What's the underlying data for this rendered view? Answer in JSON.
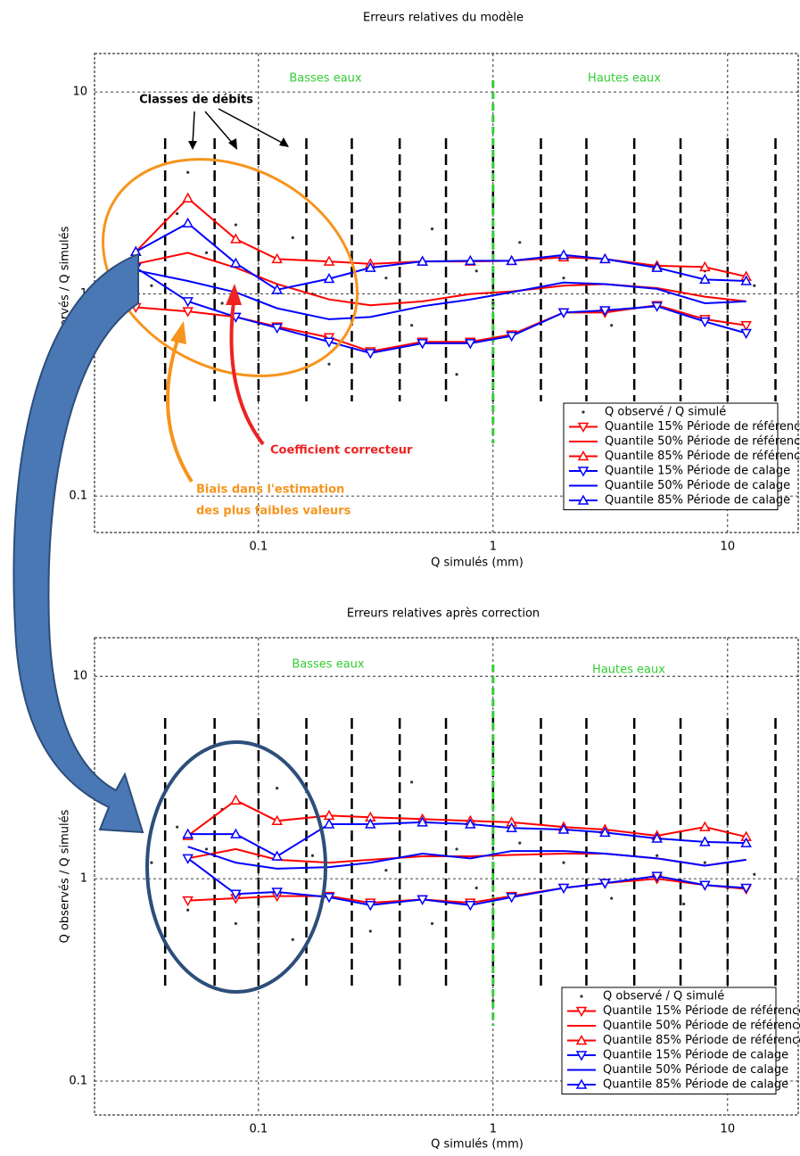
{
  "chart_data": [
    {
      "type": "line",
      "title": "Erreurs relatives du modèle",
      "xlabel": "Q simulés (mm)",
      "ylabel": "Q observés / Q simulés",
      "log_x": true,
      "log_y": true,
      "grid": true,
      "xlim": [
        0.02,
        20
      ],
      "ylim": [
        0.066,
        15.5
      ],
      "xticks": [
        0.1,
        1,
        10
      ],
      "yticks": [
        0.1,
        1,
        10
      ],
      "class_bounds": [
        0.04,
        0.065,
        0.1,
        0.16,
        0.25,
        0.4,
        0.63,
        1,
        1.6,
        2.5,
        4,
        6.3,
        10,
        16
      ],
      "divider": 1,
      "divider_color": "#33cc33",
      "annotations": [
        "Basses eaux",
        "Hautes eaux",
        "Classes de débits",
        "Coefficient correcteur",
        "Biais dans l'estimation",
        "des plus faibles valeurs"
      ],
      "legend": "lower right",
      "x": [
        0.03,
        0.05,
        0.08,
        0.12,
        0.2,
        0.3,
        0.5,
        0.8,
        1.2,
        2,
        3,
        5,
        8,
        12
      ],
      "series": [
        {
          "name": "Q observé / Q simulé",
          "color": "#333333",
          "marker": "point",
          "x": [
            0.035,
            0.045,
            0.05,
            0.06,
            0.07,
            0.08,
            0.1,
            0.12,
            0.14,
            0.17,
            0.2,
            0.25,
            0.3,
            0.35,
            0.45,
            0.55,
            0.7,
            0.85,
            1.0,
            1.3,
            1.6,
            2.0,
            2.5,
            3.2,
            4.0,
            5.0,
            6.5,
            8.0,
            10,
            13
          ],
          "values": [
            1.1,
            2.5,
            4.0,
            1.6,
            0.9,
            2.2,
            1.3,
            0.7,
            1.9,
            1.0,
            0.45,
            1.6,
            0.5,
            1.2,
            0.7,
            2.1,
            0.4,
            1.3,
            0.9,
            1.8,
            0.6,
            1.2,
            1.6,
            0.7,
            1.1,
            1.4,
            0.8,
            1.3,
            0.9,
            1.1
          ]
        },
        {
          "name": "Quantile 15% Période de référence",
          "color": "#ff0000",
          "marker": "triangle-down",
          "values": [
            0.86,
            0.82,
            0.77,
            0.69,
            0.61,
            0.52,
            0.58,
            0.58,
            0.63,
            0.81,
            0.81,
            0.88,
            0.75,
            0.7
          ]
        },
        {
          "name": "Quantile 50% Période de référence",
          "color": "#ff0000",
          "marker": "none",
          "values": [
            1.41,
            1.6,
            1.35,
            1.12,
            0.94,
            0.88,
            0.92,
            1.0,
            1.03,
            1.1,
            1.12,
            1.07,
            0.97,
            0.92
          ]
        },
        {
          "name": "Quantile 85% Période de référence",
          "color": "#ff0000",
          "marker": "triangle-up",
          "values": [
            1.62,
            2.98,
            1.87,
            1.49,
            1.45,
            1.41,
            1.45,
            1.45,
            1.46,
            1.52,
            1.49,
            1.38,
            1.36,
            1.22
          ]
        },
        {
          "name": "Quantile 15% Période de calage",
          "color": "#0000ff",
          "marker": "triangle-down",
          "values": [
            1.35,
            0.92,
            0.77,
            0.68,
            0.58,
            0.51,
            0.57,
            0.57,
            0.62,
            0.81,
            0.83,
            0.87,
            0.73,
            0.64
          ]
        },
        {
          "name": "Quantile 50% Période de calage",
          "color": "#0000ff",
          "marker": "none",
          "values": [
            1.31,
            1.16,
            1.02,
            0.85,
            0.75,
            0.77,
            0.87,
            0.94,
            1.02,
            1.14,
            1.12,
            1.06,
            0.9,
            0.92
          ]
        },
        {
          "name": "Quantile 85% Période de calage",
          "color": "#0000ff",
          "marker": "triangle-up",
          "values": [
            1.62,
            2.24,
            1.42,
            1.05,
            1.19,
            1.35,
            1.45,
            1.46,
            1.46,
            1.56,
            1.49,
            1.35,
            1.18,
            1.16
          ]
        }
      ]
    },
    {
      "type": "line",
      "title": "Erreurs relatives après correction",
      "xlabel": "Q simulés (mm)",
      "ylabel": "Q observés / Q simulés",
      "log_x": true,
      "log_y": true,
      "grid": true,
      "xlim": [
        0.02,
        20
      ],
      "ylim": [
        0.068,
        15.5
      ],
      "xticks": [
        0.1,
        1,
        10
      ],
      "yticks": [
        0.1,
        1,
        10
      ],
      "class_bounds": [
        0.04,
        0.065,
        0.1,
        0.16,
        0.25,
        0.4,
        0.63,
        1,
        1.6,
        2.5,
        4,
        6.3,
        10,
        16
      ],
      "divider": 1,
      "divider_color": "#33cc33",
      "annotations": [
        "Basses eaux",
        "Hautes eaux"
      ],
      "legend": "lower right",
      "x": [
        0.05,
        0.08,
        0.12,
        0.2,
        0.3,
        0.5,
        0.8,
        1.2,
        2,
        3,
        5,
        8,
        12
      ],
      "series": [
        {
          "name": "Q observé / Q simulé",
          "color": "#333333",
          "marker": "point",
          "x": [
            0.035,
            0.045,
            0.05,
            0.06,
            0.07,
            0.08,
            0.1,
            0.12,
            0.14,
            0.17,
            0.2,
            0.25,
            0.3,
            0.35,
            0.45,
            0.55,
            0.7,
            0.85,
            1.0,
            1.3,
            1.6,
            2.0,
            2.5,
            3.2,
            4.0,
            5.0,
            6.5,
            8.0,
            10,
            13
          ],
          "values": [
            1.2,
            1.8,
            0.7,
            1.4,
            2.2,
            0.6,
            1.0,
            2.8,
            0.5,
            1.3,
            0.8,
            1.7,
            0.55,
            1.1,
            3.0,
            0.6,
            1.4,
            0.9,
            0.25,
            1.5,
            0.7,
            1.2,
            1.6,
            0.8,
            1.0,
            1.3,
            0.75,
            1.2,
            0.9,
            1.05
          ]
        },
        {
          "name": "Quantile 15% Période de référence",
          "color": "#ff0000",
          "marker": "triangle-down",
          "values": [
            0.78,
            0.8,
            0.82,
            0.82,
            0.76,
            0.79,
            0.76,
            0.82,
            0.9,
            0.95,
            1.0,
            0.93,
            0.89
          ]
        },
        {
          "name": "Quantile 50% Période de référence",
          "color": "#ff0000",
          "marker": "none",
          "values": [
            1.26,
            1.4,
            1.24,
            1.2,
            1.24,
            1.29,
            1.29,
            1.31,
            1.33,
            1.33,
            1.26,
            1.16,
            1.24
          ]
        },
        {
          "name": "Quantile 85% Période de référence",
          "color": "#ff0000",
          "marker": "triangle-up",
          "values": [
            1.63,
            2.44,
            1.93,
            2.05,
            2.01,
            1.97,
            1.93,
            1.9,
            1.8,
            1.75,
            1.63,
            1.8,
            1.61
          ]
        },
        {
          "name": "Quantile 15% Période de calage",
          "color": "#0000ff",
          "marker": "triangle-down",
          "values": [
            1.26,
            0.84,
            0.86,
            0.81,
            0.74,
            0.79,
            0.74,
            0.81,
            0.9,
            0.95,
            1.03,
            0.93,
            0.9
          ]
        },
        {
          "name": "Quantile 50% Période de calage",
          "color": "#0000ff",
          "marker": "none",
          "values": [
            1.44,
            1.2,
            1.12,
            1.14,
            1.2,
            1.33,
            1.26,
            1.37,
            1.37,
            1.33,
            1.26,
            1.16,
            1.24
          ]
        },
        {
          "name": "Quantile 85% Période de calage",
          "color": "#0000ff",
          "marker": "triangle-up",
          "values": [
            1.66,
            1.66,
            1.29,
            1.86,
            1.86,
            1.9,
            1.86,
            1.78,
            1.75,
            1.69,
            1.58,
            1.52,
            1.5
          ]
        }
      ]
    }
  ]
}
